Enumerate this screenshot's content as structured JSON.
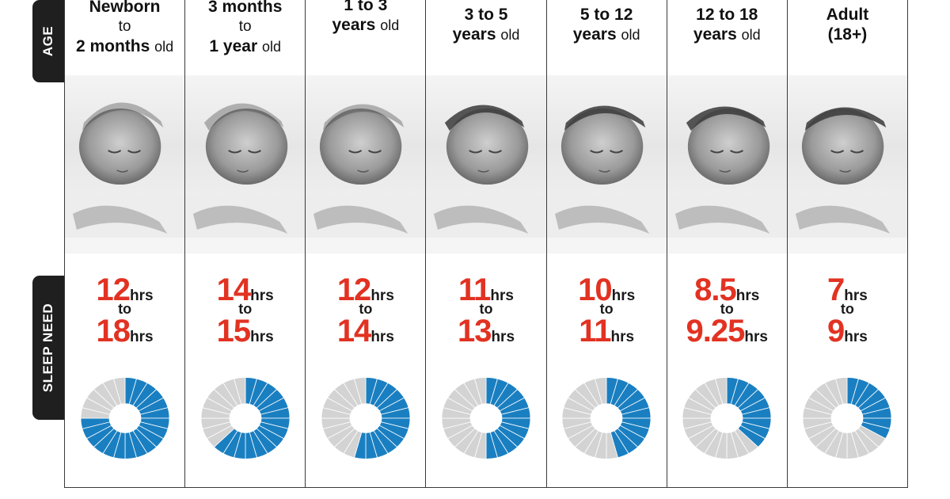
{
  "labels": {
    "age": "AGE",
    "sleep_need": "SLEEP NEED",
    "to": "to"
  },
  "colors": {
    "accent_red": "#e23222",
    "donut_blue": "#1a7fc1",
    "donut_gray": "#d3d3d3"
  },
  "columns": [
    {
      "age_line1": "Newborn",
      "age_line2": "to",
      "age_line3_main": "2 months",
      "age_line3_small": "old",
      "sleep_min": "12",
      "sleep_max": "18",
      "unit": "hrs",
      "fill_fraction": 0.75
    },
    {
      "age_line1": "3 months",
      "age_line2": "to",
      "age_line3_main": "1 year",
      "age_line3_small": "old",
      "sleep_min": "14",
      "sleep_max": "15",
      "unit": "hrs",
      "fill_fraction": 0.625
    },
    {
      "age_line1": "1 to 3",
      "age_line2": "",
      "age_line3_main": "years",
      "age_line3_small": "old",
      "sleep_min": "12",
      "sleep_max": "14",
      "unit": "hrs",
      "fill_fraction": 0.542
    },
    {
      "age_line1": "3 to 5",
      "age_line2": "",
      "age_line3_main": "years",
      "age_line3_small": "old",
      "sleep_min": "11",
      "sleep_max": "13",
      "unit": "hrs",
      "fill_fraction": 0.5
    },
    {
      "age_line1": "5 to 12",
      "age_line2": "",
      "age_line3_main": "years",
      "age_line3_small": "old",
      "sleep_min": "10",
      "sleep_max": "11",
      "unit": "hrs",
      "fill_fraction": 0.458
    },
    {
      "age_line1": "12 to 18",
      "age_line2": "",
      "age_line3_main": "years",
      "age_line3_small": "old",
      "sleep_min": "8.5",
      "sleep_max": "9.25",
      "unit": "hrs",
      "fill_fraction": 0.375
    },
    {
      "age_line1": "Adult",
      "age_line2": "",
      "age_line3_main": "(18+)",
      "age_line3_small": "",
      "sleep_min": "7",
      "sleep_max": "9",
      "unit": "hrs",
      "fill_fraction": 0.333
    }
  ]
}
